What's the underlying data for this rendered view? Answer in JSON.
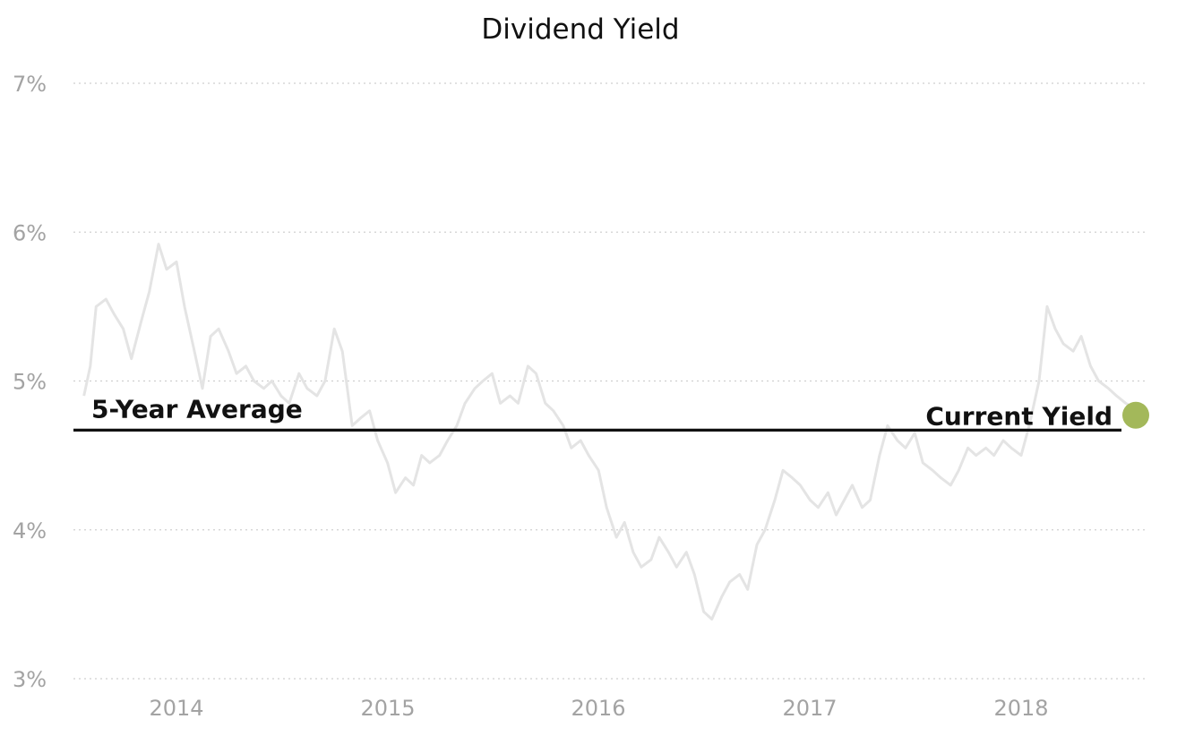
{
  "chart_data": {
    "type": "line",
    "title": "Dividend Yield",
    "y_ticks": [
      "3%",
      "4%",
      "5%",
      "6%",
      "7%"
    ],
    "x_ticks": [
      "2014",
      "2015",
      "2016",
      "2017",
      "2018"
    ],
    "ylim": [
      3,
      7
    ],
    "xlim": [
      "2013-07-15",
      "2018-07-31"
    ],
    "grid": true,
    "average_label": "5-Year Average",
    "average_value": 4.67,
    "current_label": "Current Yield",
    "current_value": 4.77,
    "colors": {
      "series": "#e4e4e4",
      "average": "#111111",
      "current_marker": "#a3b85a",
      "tick_text": "#a3a3a3"
    },
    "series": [
      {
        "x": [
          "2013-07-25",
          "2013-08-05",
          "2013-08-15",
          "2013-09-01",
          "2013-09-15",
          "2013-10-01",
          "2013-10-15",
          "2013-11-01",
          "2013-11-15",
          "2013-12-01",
          "2013-12-15",
          "2014-01-01",
          "2014-01-15",
          "2014-02-01",
          "2014-02-15",
          "2014-03-01",
          "2014-03-15",
          "2014-04-01",
          "2014-04-15",
          "2014-05-01",
          "2014-05-15",
          "2014-06-01",
          "2014-06-15",
          "2014-07-01",
          "2014-07-15",
          "2014-08-01",
          "2014-08-15",
          "2014-09-01",
          "2014-09-15",
          "2014-10-01",
          "2014-10-15",
          "2014-11-01",
          "2014-11-15",
          "2014-12-01",
          "2014-12-15",
          "2015-01-01",
          "2015-01-15",
          "2015-02-01",
          "2015-02-15",
          "2015-03-01",
          "2015-03-15",
          "2015-04-01",
          "2015-04-15",
          "2015-05-01",
          "2015-05-15",
          "2015-06-01",
          "2015-06-15",
          "2015-07-01",
          "2015-07-15",
          "2015-08-01",
          "2015-08-15",
          "2015-09-01",
          "2015-09-15",
          "2015-10-01",
          "2015-10-15",
          "2015-11-01",
          "2015-11-15",
          "2015-12-01",
          "2015-12-15",
          "2016-01-01",
          "2016-01-15",
          "2016-02-01",
          "2016-02-15",
          "2016-03-01",
          "2016-03-15",
          "2016-04-01",
          "2016-04-15",
          "2016-05-01",
          "2016-05-15",
          "2016-06-01",
          "2016-06-15",
          "2016-07-01",
          "2016-07-15",
          "2016-08-01",
          "2016-08-15",
          "2016-09-01",
          "2016-09-15",
          "2016-10-01",
          "2016-10-15",
          "2016-11-01",
          "2016-11-15",
          "2016-12-01",
          "2016-12-15",
          "2017-01-01",
          "2017-01-15",
          "2017-02-01",
          "2017-02-15",
          "2017-03-01",
          "2017-03-15",
          "2017-04-01",
          "2017-04-15",
          "2017-05-01",
          "2017-05-15",
          "2017-06-01",
          "2017-06-15",
          "2017-07-01",
          "2017-07-15",
          "2017-08-01",
          "2017-08-15",
          "2017-09-01",
          "2017-09-15",
          "2017-10-01",
          "2017-10-15",
          "2017-11-01",
          "2017-11-15",
          "2017-12-01",
          "2017-12-15",
          "2018-01-01",
          "2018-01-15",
          "2018-02-01",
          "2018-02-15",
          "2018-03-01",
          "2018-03-15",
          "2018-04-01",
          "2018-04-15",
          "2018-05-01",
          "2018-05-15",
          "2018-06-01",
          "2018-06-15",
          "2018-07-01",
          "2018-07-15",
          "2018-07-31"
        ],
        "values": [
          4.9,
          5.1,
          5.5,
          5.55,
          5.45,
          5.35,
          5.15,
          5.4,
          5.6,
          5.92,
          5.75,
          5.8,
          5.5,
          5.2,
          4.95,
          5.3,
          5.35,
          5.2,
          5.05,
          5.1,
          5.0,
          4.95,
          5.0,
          4.9,
          4.85,
          5.05,
          4.95,
          4.9,
          5.0,
          5.35,
          5.2,
          4.7,
          4.75,
          4.8,
          4.6,
          4.45,
          4.25,
          4.35,
          4.3,
          4.5,
          4.45,
          4.5,
          4.6,
          4.7,
          4.85,
          4.95,
          5.0,
          5.05,
          4.85,
          4.9,
          4.85,
          5.1,
          5.05,
          4.85,
          4.8,
          4.7,
          4.55,
          4.6,
          4.5,
          4.4,
          4.15,
          3.95,
          4.05,
          3.85,
          3.75,
          3.8,
          3.95,
          3.85,
          3.75,
          3.85,
          3.7,
          3.45,
          3.4,
          3.55,
          3.65,
          3.7,
          3.6,
          3.9,
          4.0,
          4.2,
          4.4,
          4.35,
          4.3,
          4.2,
          4.15,
          4.25,
          4.1,
          4.2,
          4.3,
          4.15,
          4.2,
          4.5,
          4.7,
          4.6,
          4.55,
          4.65,
          4.45,
          4.4,
          4.35,
          4.3,
          4.4,
          4.55,
          4.5,
          4.55,
          4.5,
          4.6,
          4.55,
          4.5,
          4.7,
          5.0,
          5.5,
          5.35,
          5.25,
          5.2,
          5.3,
          5.1,
          5.0,
          4.95,
          4.9,
          4.85,
          4.82,
          4.77
        ]
      }
    ]
  }
}
